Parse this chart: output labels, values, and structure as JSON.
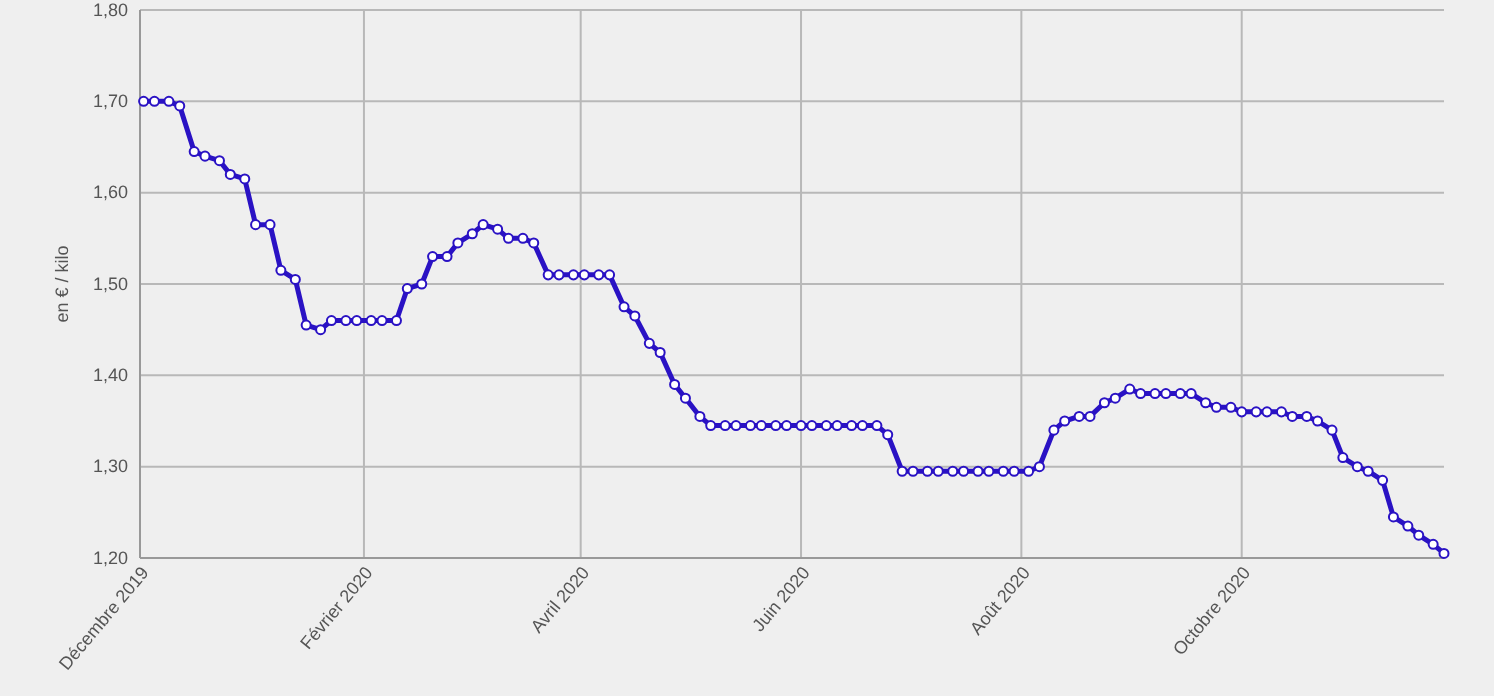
{
  "chart_data": {
    "type": "line",
    "ylabel": "en € / kilo",
    "x": [
      "2019-12-02",
      "2019-12-05",
      "2019-12-09",
      "2019-12-12",
      "2019-12-16",
      "2019-12-19",
      "2019-12-23",
      "2019-12-26",
      "2019-12-30",
      "2020-01-02",
      "2020-01-06",
      "2020-01-09",
      "2020-01-13",
      "2020-01-16",
      "2020-01-20",
      "2020-01-23",
      "2020-01-27",
      "2020-01-30",
      "2020-02-03",
      "2020-02-06",
      "2020-02-10",
      "2020-02-13",
      "2020-02-17",
      "2020-02-20",
      "2020-02-24",
      "2020-02-27",
      "2020-03-02",
      "2020-03-05",
      "2020-03-09",
      "2020-03-12",
      "2020-03-16",
      "2020-03-19",
      "2020-03-23",
      "2020-03-26",
      "2020-03-30",
      "2020-04-02",
      "2020-04-06",
      "2020-04-09",
      "2020-04-13",
      "2020-04-16",
      "2020-04-20",
      "2020-04-23",
      "2020-04-27",
      "2020-04-30",
      "2020-05-04",
      "2020-05-07",
      "2020-05-11",
      "2020-05-14",
      "2020-05-18",
      "2020-05-21",
      "2020-05-25",
      "2020-05-28",
      "2020-06-01",
      "2020-06-04",
      "2020-06-08",
      "2020-06-11",
      "2020-06-15",
      "2020-06-18",
      "2020-06-22",
      "2020-06-25",
      "2020-06-29",
      "2020-07-02",
      "2020-07-06",
      "2020-07-09",
      "2020-07-13",
      "2020-07-16",
      "2020-07-20",
      "2020-07-23",
      "2020-07-27",
      "2020-07-30",
      "2020-08-03",
      "2020-08-06",
      "2020-08-10",
      "2020-08-13",
      "2020-08-17",
      "2020-08-20",
      "2020-08-24",
      "2020-08-27",
      "2020-08-31",
      "2020-09-03",
      "2020-09-07",
      "2020-09-10",
      "2020-09-14",
      "2020-09-17",
      "2020-09-21",
      "2020-09-24",
      "2020-09-28",
      "2020-10-01",
      "2020-10-05",
      "2020-10-08",
      "2020-10-12",
      "2020-10-15",
      "2020-10-19",
      "2020-10-22",
      "2020-10-26",
      "2020-10-29",
      "2020-11-02",
      "2020-11-05",
      "2020-11-09",
      "2020-11-12",
      "2020-11-16",
      "2020-11-19",
      "2020-11-23",
      "2020-11-26"
    ],
    "series": [
      {
        "color": "#2a12c4",
        "values": [
          1.7,
          1.7,
          1.7,
          1.695,
          1.645,
          1.64,
          1.635,
          1.62,
          1.615,
          1.565,
          1.565,
          1.515,
          1.505,
          1.455,
          1.45,
          1.46,
          1.46,
          1.46,
          1.46,
          1.46,
          1.46,
          1.495,
          1.5,
          1.53,
          1.53,
          1.545,
          1.555,
          1.565,
          1.56,
          1.55,
          1.55,
          1.545,
          1.51,
          1.51,
          1.51,
          1.51,
          1.51,
          1.51,
          1.475,
          1.465,
          1.435,
          1.425,
          1.39,
          1.375,
          1.355,
          1.345,
          1.345,
          1.345,
          1.345,
          1.345,
          1.345,
          1.345,
          1.345,
          1.345,
          1.345,
          1.345,
          1.345,
          1.345,
          1.345,
          1.335,
          1.295,
          1.295,
          1.295,
          1.295,
          1.295,
          1.295,
          1.295,
          1.295,
          1.295,
          1.295,
          1.295,
          1.3,
          1.34,
          1.35,
          1.355,
          1.355,
          1.37,
          1.375,
          1.385,
          1.38,
          1.38,
          1.38,
          1.38,
          1.38,
          1.37,
          1.365,
          1.365,
          1.36,
          1.36,
          1.36,
          1.36,
          1.355,
          1.355,
          1.35,
          1.34,
          1.31,
          1.3,
          1.295,
          1.285,
          1.245,
          1.235,
          1.225,
          1.215,
          1.205
        ]
      }
    ],
    "xlim": [
      "2019-12-01",
      "2020-11-26"
    ],
    "xticks": [
      {
        "value": "2019-12-01",
        "label": "Décembre 2019"
      },
      {
        "value": "2020-02-01",
        "label": "Février 2020"
      },
      {
        "value": "2020-04-01",
        "label": "Avril 2020"
      },
      {
        "value": "2020-06-01",
        "label": "Juin 2020"
      },
      {
        "value": "2020-08-01",
        "label": "Août 2020"
      },
      {
        "value": "2020-10-01",
        "label": "Octobre 2020"
      }
    ],
    "ylim": [
      1.2,
      1.8
    ],
    "yticks": [
      {
        "value": 1.2,
        "label": "1,20"
      },
      {
        "value": 1.3,
        "label": "1,30"
      },
      {
        "value": 1.4,
        "label": "1,40"
      },
      {
        "value": 1.5,
        "label": "1,50"
      },
      {
        "value": 1.6,
        "label": "1,60"
      },
      {
        "value": 1.7,
        "label": "1,70"
      },
      {
        "value": 1.8,
        "label": "1,80"
      }
    ],
    "grid": true,
    "marker": "circle",
    "line_style": "solid"
  }
}
